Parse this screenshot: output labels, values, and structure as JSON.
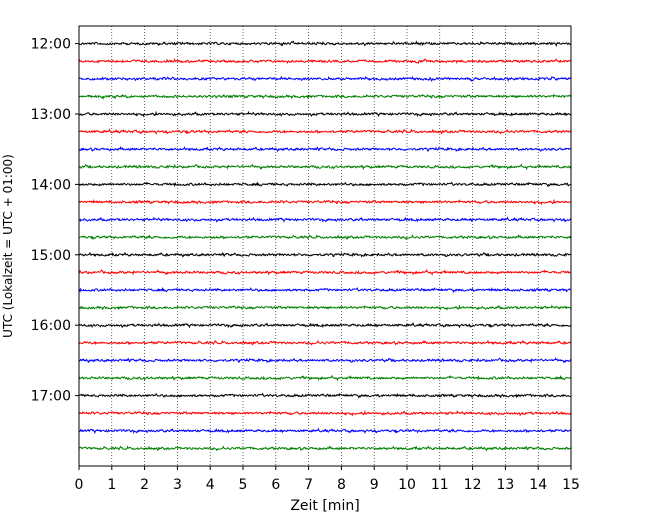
{
  "chart_data": {
    "type": "line",
    "title": "",
    "xlabel": "Zeit  [min]",
    "ylabel": "UTC (Lokalzeit = UTC + 01:00)",
    "xlim": [
      0,
      15
    ],
    "x_ticks": [
      "0",
      "1",
      "2",
      "3",
      "4",
      "5",
      "6",
      "7",
      "8",
      "9",
      "10",
      "11",
      "12",
      "13",
      "14",
      "15"
    ],
    "y_ticks": [
      "12:00",
      "13:00",
      "14:00",
      "15:00",
      "16:00",
      "17:00"
    ],
    "y_range_hours": [
      "11:45",
      "18:00"
    ],
    "row_interval_min": 15,
    "grid": "vertical dotted lines at each minute",
    "row_colors": [
      "#000000",
      "#ff0000",
      "#0000ff",
      "#008000"
    ],
    "series": [
      {
        "start": "12:00",
        "color": "#000000"
      },
      {
        "start": "12:15",
        "color": "#ff0000"
      },
      {
        "start": "12:30",
        "color": "#0000ff"
      },
      {
        "start": "12:45",
        "color": "#008000"
      },
      {
        "start": "13:00",
        "color": "#000000"
      },
      {
        "start": "13:15",
        "color": "#ff0000"
      },
      {
        "start": "13:30",
        "color": "#0000ff"
      },
      {
        "start": "13:45",
        "color": "#008000"
      },
      {
        "start": "14:00",
        "color": "#000000"
      },
      {
        "start": "14:15",
        "color": "#ff0000"
      },
      {
        "start": "14:30",
        "color": "#0000ff"
      },
      {
        "start": "14:45",
        "color": "#008000"
      },
      {
        "start": "15:00",
        "color": "#000000"
      },
      {
        "start": "15:15",
        "color": "#ff0000"
      },
      {
        "start": "15:30",
        "color": "#0000ff"
      },
      {
        "start": "15:45",
        "color": "#008000"
      },
      {
        "start": "16:00",
        "color": "#000000"
      },
      {
        "start": "16:15",
        "color": "#ff0000"
      },
      {
        "start": "16:30",
        "color": "#0000ff"
      },
      {
        "start": "16:45",
        "color": "#008000"
      },
      {
        "start": "17:00",
        "color": "#000000"
      },
      {
        "start": "17:15",
        "color": "#ff0000"
      },
      {
        "start": "17:30",
        "color": "#0000ff"
      },
      {
        "start": "17:45",
        "color": "#008000"
      }
    ]
  }
}
